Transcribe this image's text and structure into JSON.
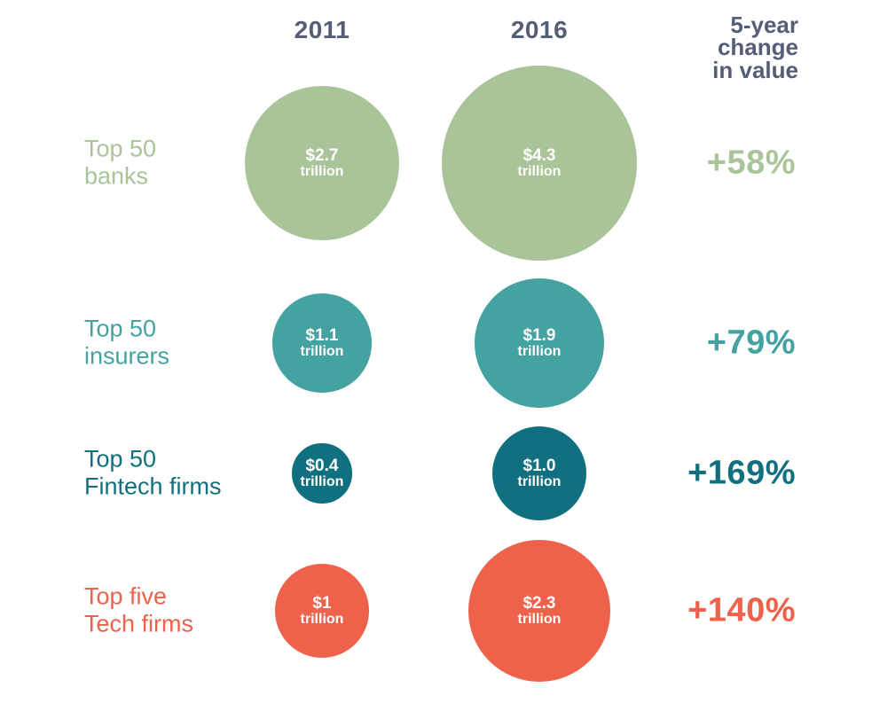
{
  "header": {
    "col_2011": "2011",
    "col_2016": "2016",
    "change_lines": [
      "5-year",
      "change",
      "in value"
    ],
    "header_color": "#565e77"
  },
  "rows": [
    {
      "id": "banks",
      "label_lines": [
        "Top 50",
        "banks"
      ],
      "color": "#a9c499",
      "bubble_2011": {
        "value_label": "$2.7",
        "unit": "trillion"
      },
      "bubble_2016": {
        "value_label": "$4.3",
        "unit": "trillion"
      },
      "change": "+58%"
    },
    {
      "id": "insurers",
      "label_lines": [
        "Top 50",
        "insurers"
      ],
      "color": "#44a3a1",
      "bubble_2011": {
        "value_label": "$1.1",
        "unit": "trillion"
      },
      "bubble_2016": {
        "value_label": "$1.9",
        "unit": "trillion"
      },
      "change": "+79%"
    },
    {
      "id": "fintech-firms",
      "label_lines": [
        "Top 50",
        "Fintech firms"
      ],
      "color": "#11707f",
      "bubble_2011": {
        "value_label": "$0.4",
        "unit": "trillion"
      },
      "bubble_2016": {
        "value_label": "$1.0",
        "unit": "trillion"
      },
      "change": "+169%"
    },
    {
      "id": "tech-firms",
      "label_lines": [
        "Top five",
        "Tech firms"
      ],
      "color": "#ee614b",
      "bubble_2011": {
        "value_label": "$1",
        "unit": "trillion"
      },
      "bubble_2016": {
        "value_label": "$2.3",
        "unit": "trillion"
      },
      "change": "+140%"
    }
  ],
  "chart_data": {
    "type": "bubble",
    "title": "",
    "categories": [
      "Top 50 banks",
      "Top 50 insurers",
      "Top 50 Fintech firms",
      "Top five Tech firms"
    ],
    "series": [
      {
        "name": "2011",
        "values": [
          2.7,
          1.1,
          0.4,
          1.0
        ]
      },
      {
        "name": "2016",
        "values": [
          4.3,
          1.9,
          1.0,
          2.3
        ]
      }
    ],
    "value_unit": "trillion",
    "change_column_label": "5-year change in value",
    "change_pct": [
      "+58%",
      "+79%",
      "+169%",
      "+140%"
    ],
    "size_encoding": "circle area proportional to value",
    "series_colors": [
      "#a9c499",
      "#44a3a1",
      "#11707f",
      "#ee614b"
    ],
    "legend_position": "none",
    "grid": false
  }
}
